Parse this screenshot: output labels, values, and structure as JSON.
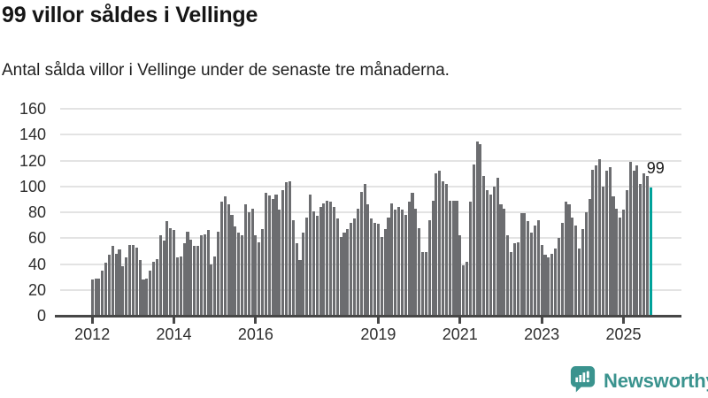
{
  "header": {
    "title": "99 villor såldes i Vellinge",
    "subtitle": "Antal sålda villor i Vellinge under de senaste tre månaderna."
  },
  "chart_data": {
    "type": "bar",
    "title": "99 villor såldes i Vellinge",
    "subtitle": "Antal sålda villor i Vellinge under de senaste tre månaderna.",
    "x_unit": "month",
    "x_monthly_range": [
      "2012-01",
      "2025-09"
    ],
    "values": [
      28,
      29,
      29,
      35,
      41,
      47,
      54,
      48,
      51,
      38,
      45,
      55,
      55,
      53,
      43,
      28,
      29,
      35,
      42,
      44,
      62,
      58,
      73,
      68,
      66,
      45,
      46,
      56,
      65,
      59,
      54,
      54,
      62,
      63,
      66,
      40,
      46,
      65,
      88,
      92,
      86,
      78,
      69,
      64,
      62,
      86,
      80,
      83,
      62,
      57,
      67,
      95,
      93,
      90,
      94,
      82,
      97,
      103,
      104,
      74,
      56,
      43,
      64,
      76,
      94,
      81,
      77,
      84,
      87,
      89,
      88,
      84,
      75,
      61,
      64,
      67,
      72,
      75,
      83,
      96,
      102,
      86,
      75,
      72,
      71,
      61,
      67,
      76,
      87,
      82,
      84,
      82,
      78,
      88,
      95,
      83,
      68,
      49,
      49,
      74,
      89,
      110,
      112,
      104,
      102,
      89,
      89,
      89,
      62,
      39,
      42,
      88,
      117,
      135,
      133,
      108,
      97,
      94,
      100,
      107,
      86,
      83,
      62,
      49,
      56,
      57,
      79,
      79,
      73,
      64,
      70,
      74,
      55,
      47,
      45,
      48,
      52,
      60,
      72,
      88,
      86,
      76,
      70,
      52,
      67,
      80,
      90,
      113,
      116,
      121,
      100,
      112,
      115,
      92,
      83,
      76,
      82,
      97,
      119,
      112,
      116,
      102,
      110,
      108,
      99
    ],
    "highlight": {
      "index": 164,
      "value": 99,
      "label": "99",
      "color": "#00a29a"
    },
    "bar_color": "#6c6d70",
    "ylim": [
      0,
      160
    ],
    "yticks": [
      0,
      20,
      40,
      60,
      80,
      100,
      120,
      140,
      160
    ],
    "xticks": [
      {
        "label": "2012",
        "month_index": 0
      },
      {
        "label": "2014",
        "month_index": 24
      },
      {
        "label": "2016",
        "month_index": 48
      },
      {
        "label": "2019",
        "month_index": 84
      },
      {
        "label": "2021",
        "month_index": 108
      },
      {
        "label": "2023",
        "month_index": 132
      },
      {
        "label": "2025",
        "month_index": 156
      }
    ],
    "grid": true,
    "legend": "none"
  },
  "footer": {
    "brand": "Newsworthy",
    "brand_color": "#3a938e",
    "logo_icon": "bar-chart-speech-bubble-icon"
  }
}
